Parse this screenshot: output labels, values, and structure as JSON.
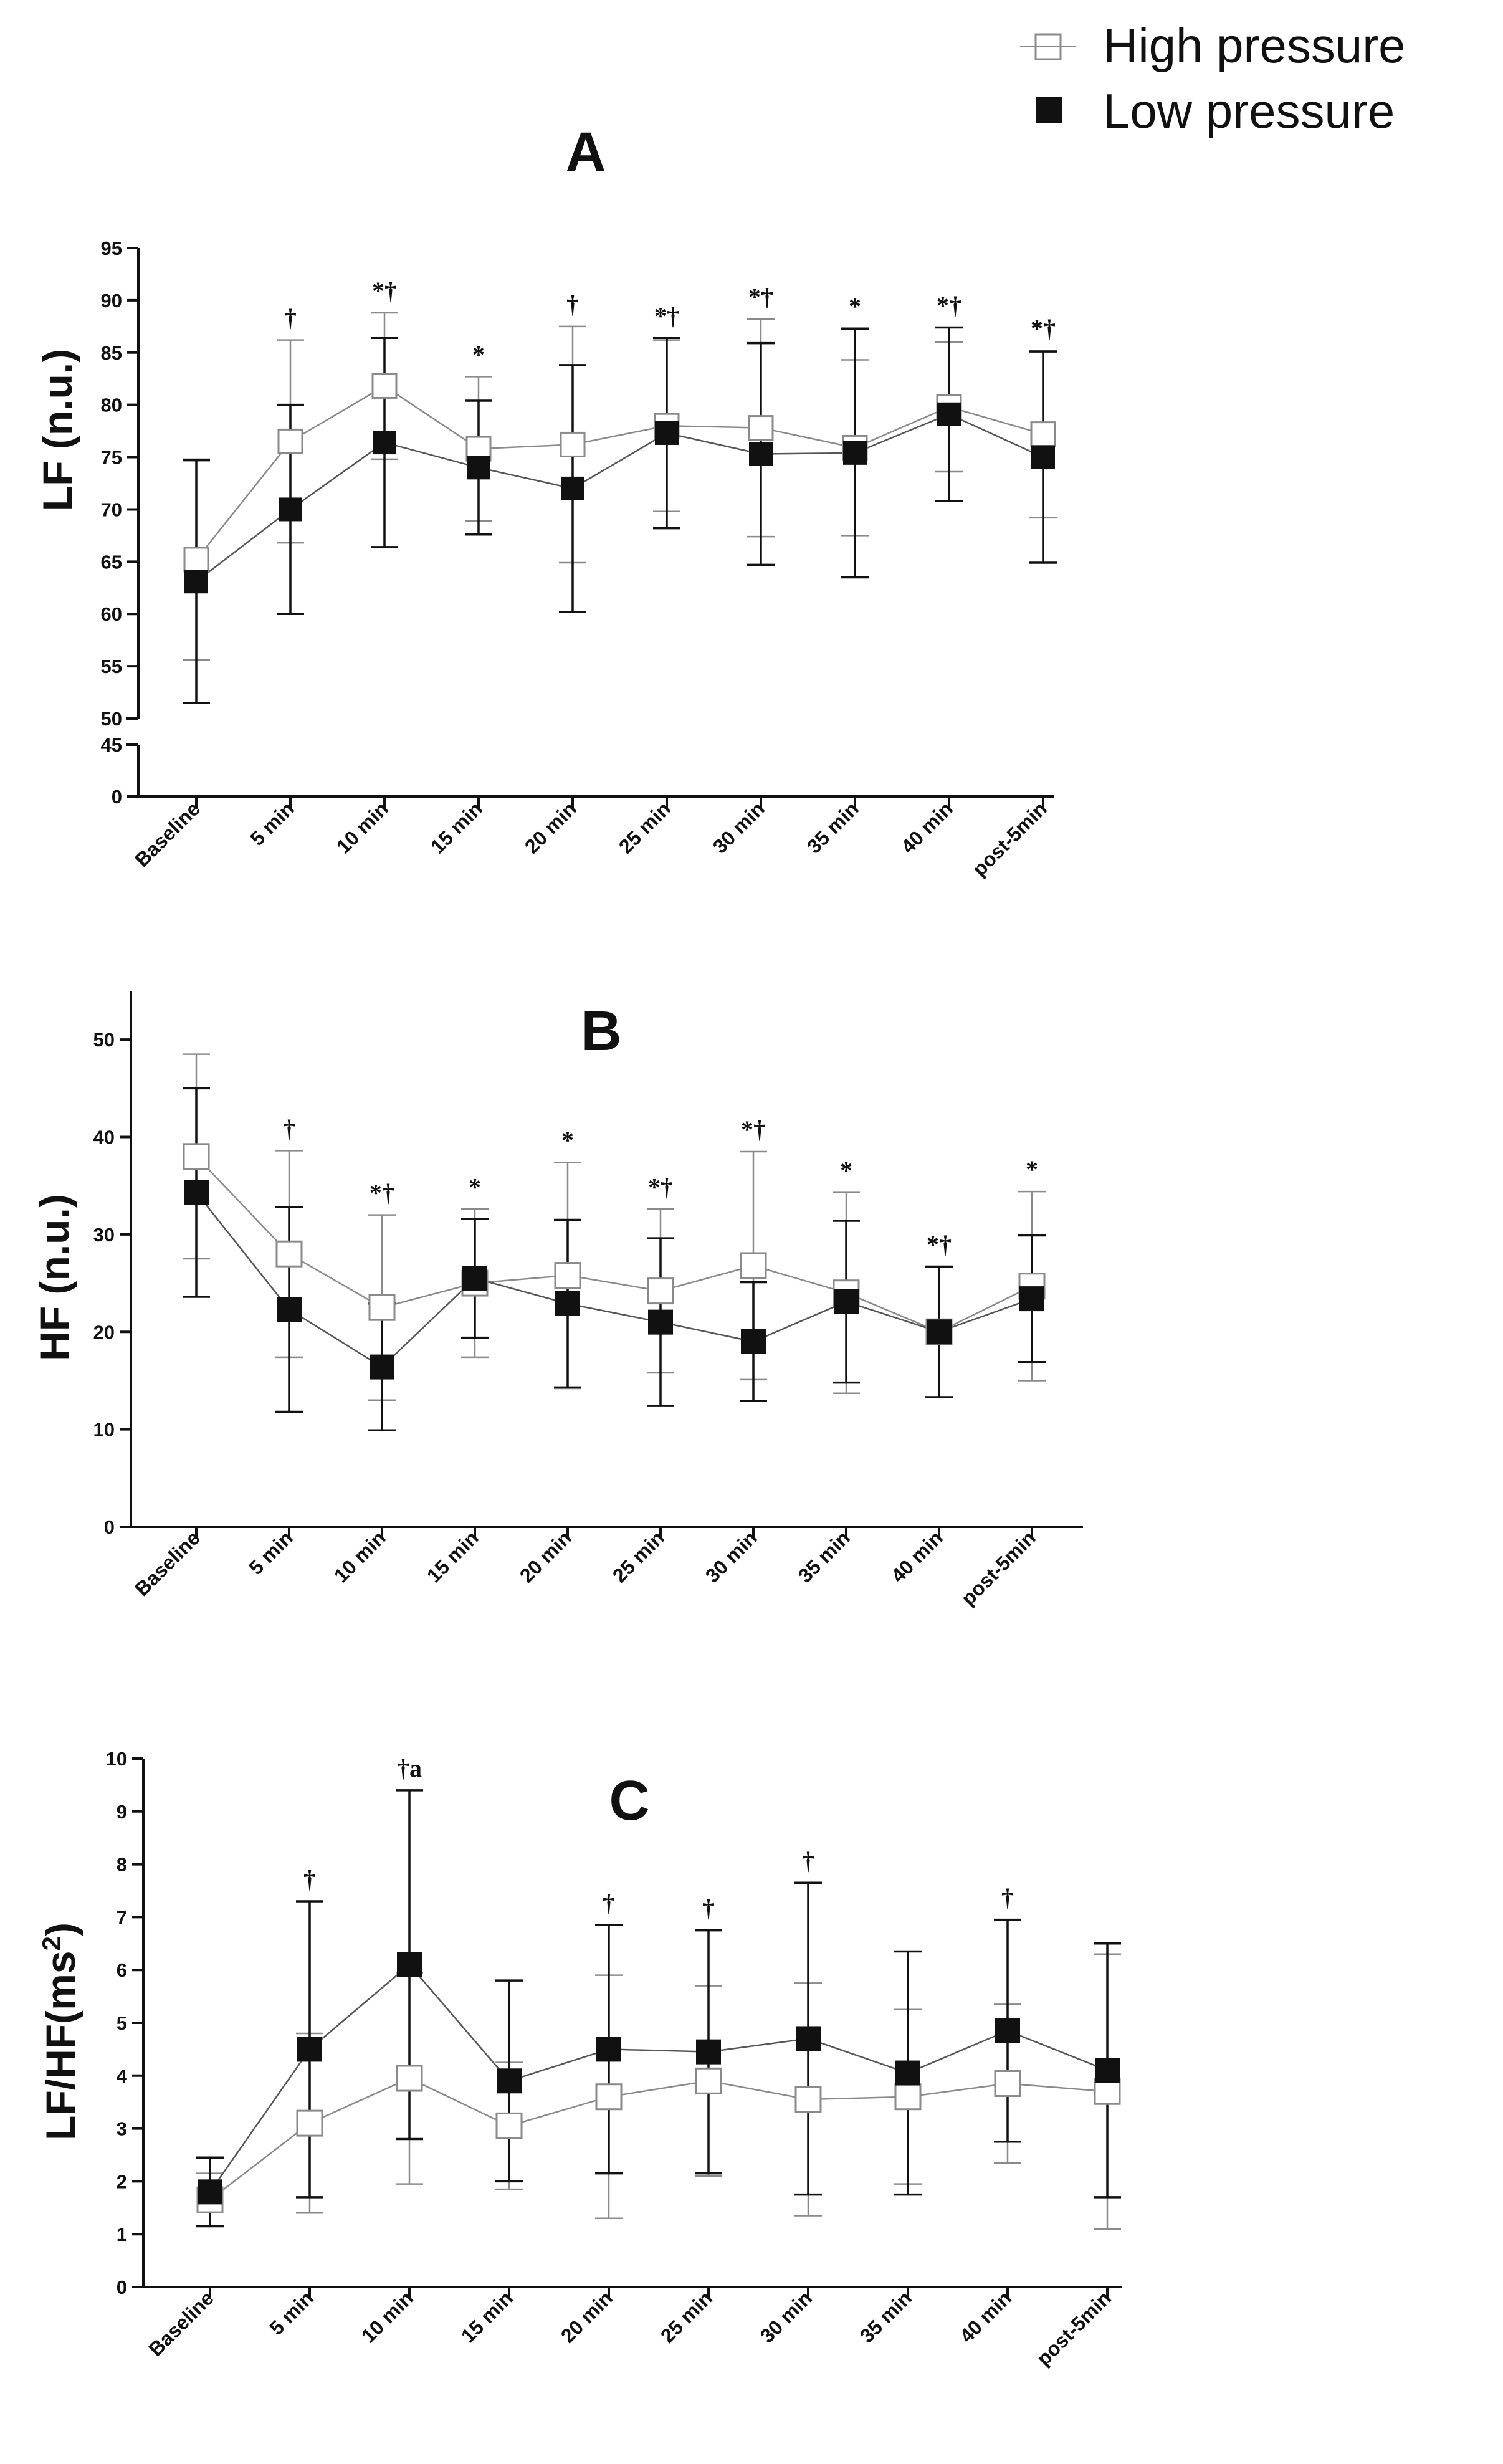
{
  "legend": {
    "entries": [
      {
        "label": "High pressure",
        "marker": "open-square"
      },
      {
        "label": "Low pressure",
        "marker": "filled-square"
      }
    ],
    "placement": "top-right"
  },
  "colors": {
    "high": "#8a8a8a",
    "low": "#111111",
    "axis": "#111111"
  },
  "chart_data": [
    {
      "type": "line",
      "title": "A",
      "xlabel": "",
      "ylabel": "LF (n.u.)",
      "categories": [
        "Baseline",
        "5 min",
        "10 min",
        "15 min",
        "20 min",
        "25 min",
        "30 min",
        "35 min",
        "40 min",
        "post-5min"
      ],
      "ylim": [
        0,
        95
      ],
      "axis_break": [
        45,
        50
      ],
      "yticks": [
        "0",
        "45",
        "50",
        "55",
        "60",
        "65",
        "70",
        "75",
        "80",
        "85",
        "90",
        "95"
      ],
      "series": [
        {
          "name": "High pressure",
          "values": [
            65.2,
            76.5,
            81.8,
            75.8,
            76.2,
            78.0,
            77.8,
            75.9,
            79.8,
            77.2
          ],
          "error": [
            9.6,
            9.7,
            7.0,
            6.9,
            11.3,
            8.2,
            10.4,
            8.4,
            6.2,
            8.0
          ]
        },
        {
          "name": "Low pressure",
          "values": [
            63.1,
            70.0,
            76.4,
            74.0,
            72.0,
            77.3,
            75.3,
            75.4,
            79.1,
            75.0
          ],
          "error": [
            11.6,
            10.0,
            10.0,
            6.4,
            11.8,
            9.1,
            10.6,
            11.9,
            8.3,
            10.1
          ]
        }
      ],
      "annotations": [
        "",
        "†",
        "*†",
        "*",
        "†",
        "*†",
        "*†",
        "*",
        "*†",
        "*†"
      ]
    },
    {
      "type": "line",
      "title": "B",
      "xlabel": "",
      "ylabel": "HF (n.u.)",
      "categories": [
        "Baseline",
        "5 min",
        "10 min",
        "15 min",
        "20 min",
        "25 min",
        "30 min",
        "35 min",
        "40 min",
        "post-5min"
      ],
      "ylim": [
        0,
        55
      ],
      "yticks": [
        "0",
        "10",
        "20",
        "30",
        "40",
        "50"
      ],
      "series": [
        {
          "name": "High pressure",
          "values": [
            38.0,
            28.0,
            22.5,
            25.0,
            25.8,
            24.2,
            26.8,
            24.0,
            20.0,
            24.7
          ],
          "error": [
            10.5,
            10.6,
            9.5,
            7.6,
            11.6,
            8.4,
            11.7,
            10.3,
            6.7,
            9.7
          ]
        },
        {
          "name": "Low pressure",
          "values": [
            34.3,
            22.3,
            16.4,
            25.5,
            22.9,
            21.0,
            19.0,
            23.1,
            20.0,
            23.4
          ],
          "error": [
            10.7,
            10.5,
            6.5,
            6.1,
            8.6,
            8.6,
            6.1,
            8.3,
            6.7,
            6.5
          ]
        }
      ],
      "annotations": [
        "",
        "†",
        "*†",
        "*",
        "*",
        "*†",
        "*†",
        "*",
        "*†",
        "*"
      ]
    },
    {
      "type": "line",
      "title": "C",
      "xlabel": "",
      "ylabel": "LF/HF(ms",
      "ylabel_sup": "2",
      "ylabel_end": ")",
      "categories": [
        "Baseline",
        "5 min",
        "10 min",
        "15 min",
        "20 min",
        "25 min",
        "30 min",
        "35 min",
        "40 min",
        "post-5min"
      ],
      "ylim": [
        0,
        10
      ],
      "yticks": [
        "0",
        "1",
        "2",
        "3",
        "4",
        "5",
        "6",
        "7",
        "8",
        "9",
        "10"
      ],
      "series": [
        {
          "name": "High pressure",
          "values": [
            1.65,
            3.1,
            3.95,
            3.05,
            3.6,
            3.9,
            3.55,
            3.6,
            3.85,
            3.7
          ],
          "error": [
            0.5,
            1.7,
            2.0,
            1.2,
            2.3,
            1.8,
            2.2,
            1.65,
            1.5,
            2.6
          ]
        },
        {
          "name": "Low pressure",
          "values": [
            1.8,
            4.5,
            6.1,
            3.9,
            4.5,
            4.45,
            4.7,
            4.05,
            4.85,
            4.1
          ],
          "error": [
            0.65,
            2.8,
            3.3,
            1.9,
            2.35,
            2.3,
            2.95,
            2.3,
            2.1,
            2.4
          ]
        }
      ],
      "annotations": [
        "",
        "†",
        "†a",
        "",
        "†",
        "†",
        "†",
        "",
        "†",
        ""
      ]
    }
  ]
}
